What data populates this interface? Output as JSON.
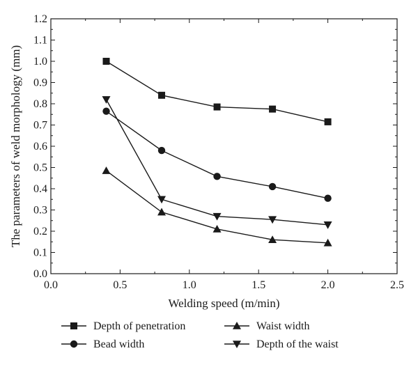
{
  "chart_data": {
    "type": "line",
    "title": "",
    "xlabel": "Welding speed (m/min)",
    "ylabel": "The parameters of weld morphology (mm)",
    "xlim": [
      0.0,
      2.5
    ],
    "ylim": [
      0.0,
      1.2
    ],
    "xticks": [
      "0.0",
      "0.5",
      "1.0",
      "1.5",
      "2.0",
      "2.5"
    ],
    "yticks": [
      "0.0",
      "0.1",
      "0.2",
      "0.3",
      "0.4",
      "0.5",
      "0.6",
      "0.7",
      "0.8",
      "0.9",
      "1.0",
      "1.1",
      "1.2"
    ],
    "grid": false,
    "legend_position": "bottom",
    "x": [
      0.4,
      0.8,
      1.2,
      1.6,
      2.0
    ],
    "series": [
      {
        "name": "Depth of penetration",
        "marker": "square",
        "values": [
          1.0,
          0.84,
          0.785,
          0.775,
          0.715
        ]
      },
      {
        "name": "Bead width",
        "marker": "circle",
        "values": [
          0.765,
          0.58,
          0.458,
          0.41,
          0.355
        ]
      },
      {
        "name": "Waist width",
        "marker": "triangle-up",
        "values": [
          0.485,
          0.29,
          0.21,
          0.16,
          0.145
        ]
      },
      {
        "name": "Depth of the waist",
        "marker": "triangle-down",
        "values": [
          0.82,
          0.35,
          0.27,
          0.255,
          0.23
        ]
      }
    ],
    "colors": {
      "line": "#1a1a1a",
      "marker": "#1a1a1a",
      "axis": "#1a1a1a"
    }
  }
}
